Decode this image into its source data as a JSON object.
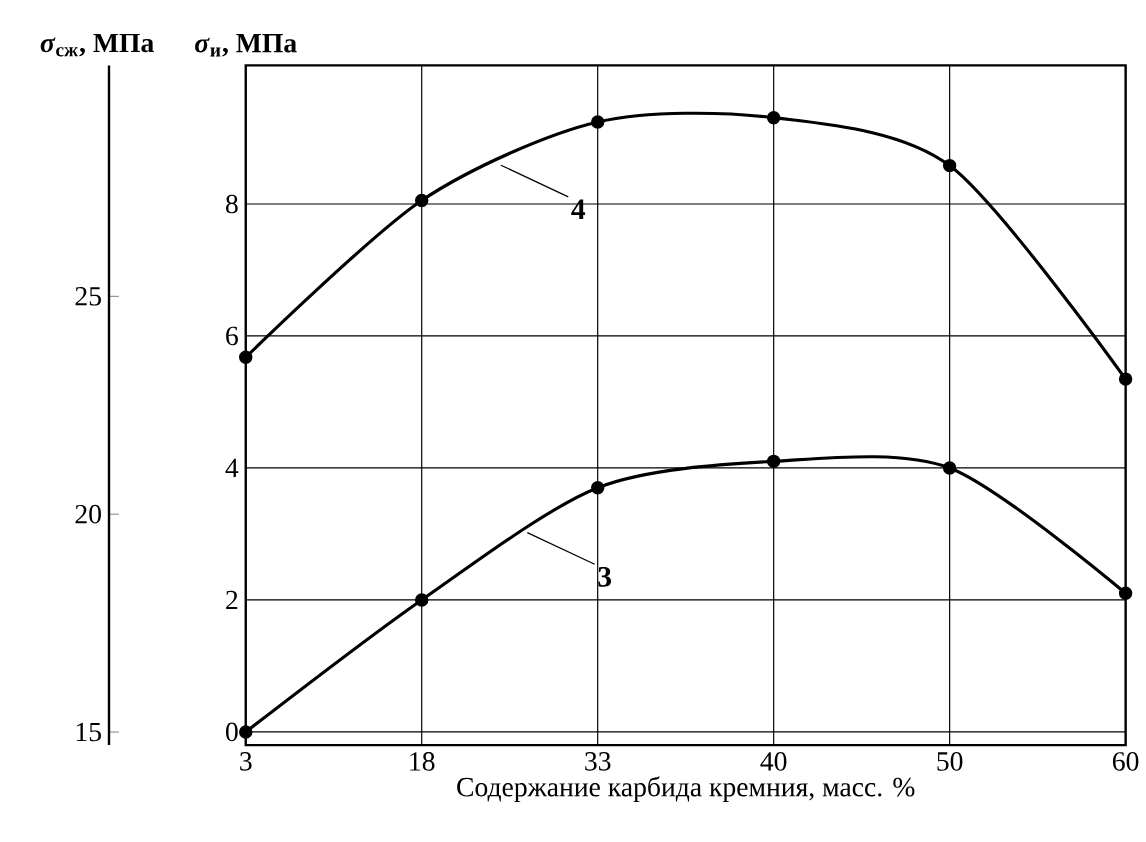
{
  "chart_data": {
    "type": "line",
    "xlabel": "Содержание карбида кремния, масс. %",
    "ylabel": "*σ*$_{и}$, МПа",
    "y2label": "*σ*$_{сж}$, МПа",
    "categories": [
      "3",
      "18",
      "33",
      "40",
      "50",
      "60"
    ],
    "ylim": [
      -0.2,
      10.1
    ],
    "yticks": [
      0,
      2,
      4,
      6,
      8
    ],
    "y2lim": [
      14.7,
      30.3
    ],
    "y2ticks": [
      15,
      20,
      25
    ],
    "grid": true,
    "marker": "circle",
    "line_style": "solid",
    "series": [
      {
        "name": "4",
        "color": "#000000",
        "axis": "y2",
        "values": [
          23.6,
          27.2,
          29.0,
          29.1,
          28.0,
          23.1
        ]
      },
      {
        "name": "3",
        "color": "#000000",
        "values": [
          0,
          2.0,
          3.7,
          4.1,
          4.0,
          2.1
        ]
      }
    ]
  }
}
